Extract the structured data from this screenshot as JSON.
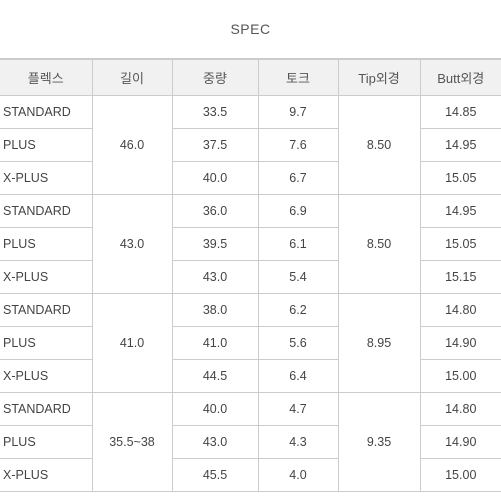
{
  "title": "SPEC",
  "columns": [
    "플렉스",
    "길이",
    "중량",
    "토크",
    "Tip외경",
    "Butt외경"
  ],
  "groups": [
    {
      "length": "46.0",
      "tip": "8.50",
      "rows": [
        {
          "flex": "STANDARD",
          "weight": "33.5",
          "torque": "9.7",
          "butt": "14.85"
        },
        {
          "flex": "PLUS",
          "weight": "37.5",
          "torque": "7.6",
          "butt": "14.95"
        },
        {
          "flex": "X-PLUS",
          "weight": "40.0",
          "torque": "6.7",
          "butt": "15.05"
        }
      ]
    },
    {
      "length": "43.0",
      "tip": "8.50",
      "rows": [
        {
          "flex": "STANDARD",
          "weight": "36.0",
          "torque": "6.9",
          "butt": "14.95"
        },
        {
          "flex": "PLUS",
          "weight": "39.5",
          "torque": "6.1",
          "butt": "15.05"
        },
        {
          "flex": "X-PLUS",
          "weight": "43.0",
          "torque": "5.4",
          "butt": "15.15"
        }
      ]
    },
    {
      "length": "41.0",
      "tip": "8.95",
      "rows": [
        {
          "flex": "STANDARD",
          "weight": "38.0",
          "torque": "6.2",
          "butt": "14.80"
        },
        {
          "flex": "PLUS",
          "weight": "41.0",
          "torque": "5.6",
          "butt": "14.90"
        },
        {
          "flex": "X-PLUS",
          "weight": "44.5",
          "torque": "6.4",
          "butt": "15.00"
        }
      ]
    },
    {
      "length": "35.5~38",
      "tip": "9.35",
      "rows": [
        {
          "flex": "STANDARD",
          "weight": "40.0",
          "torque": "4.7",
          "butt": "14.80"
        },
        {
          "flex": "PLUS",
          "weight": "43.0",
          "torque": "4.3",
          "butt": "14.90"
        },
        {
          "flex": "X-PLUS",
          "weight": "45.5",
          "torque": "4.0",
          "butt": "15.00"
        }
      ]
    }
  ]
}
